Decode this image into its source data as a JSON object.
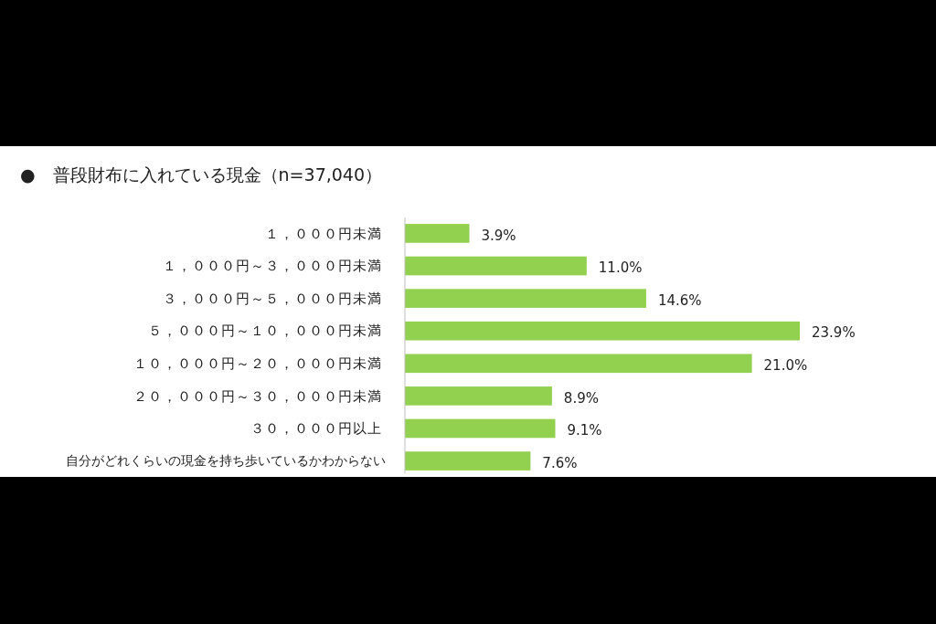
{
  "chart_data": {
    "type": "bar",
    "orientation": "horizontal",
    "title": "●　普段財布に入れている現金（n=37,040）",
    "categories": [
      "１，０００円未満",
      "１，０００円～３，０００円未満",
      "３，０００円～５，０００円未満",
      "５，０００円～１０，０００円未満",
      "１０，０００円～２０，０００円未満",
      "２０，０００円～３０，０００円未満",
      "３０，０００円以上",
      "自分がどれくらいの現金を持ち歩いているかわからない"
    ],
    "values": [
      3.9,
      11.0,
      14.6,
      23.9,
      21.0,
      8.9,
      9.1,
      7.6
    ],
    "value_labels": [
      "3.9%",
      "11.0%",
      "14.6%",
      "23.9%",
      "21.0%",
      "8.9%",
      "9.1%",
      "7.6%"
    ],
    "color": "#92d050"
  }
}
